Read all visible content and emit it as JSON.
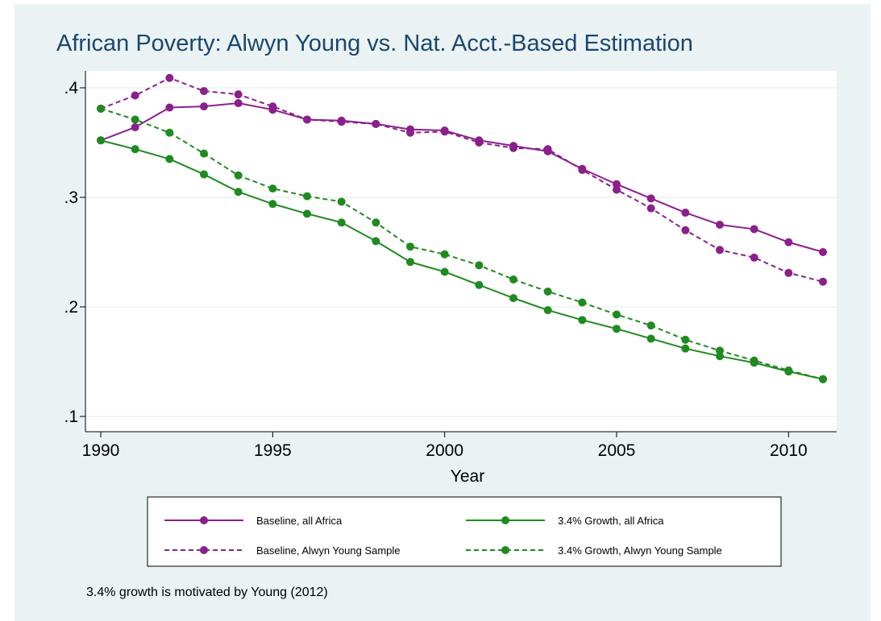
{
  "chart_data": {
    "type": "line",
    "title": "African Poverty: Alwyn Young vs. Nat. Acct.-Based Estimation",
    "xlabel": "Year",
    "ylabel": "",
    "xlim": [
      1990,
      2011
    ],
    "ylim": [
      0.1,
      0.4
    ],
    "x_ticks": [
      1990,
      1995,
      2000,
      2005,
      2010
    ],
    "x_tick_labels": [
      "1990",
      "1995",
      "2000",
      "2005",
      "2010"
    ],
    "y_ticks": [
      0.1,
      0.2,
      0.3,
      0.4
    ],
    "y_tick_labels": [
      ".1",
      ".2",
      ".3",
      ".4"
    ],
    "grid": "horizontal",
    "legend_position": "bottom",
    "x": [
      1990,
      1991,
      1992,
      1993,
      1994,
      1995,
      1996,
      1997,
      1998,
      1999,
      2000,
      2001,
      2002,
      2003,
      2004,
      2005,
      2006,
      2007,
      2008,
      2009,
      2010,
      2011
    ],
    "series": [
      {
        "name": "Baseline, all Africa",
        "color": "#8b1f8b",
        "dash": "solid",
        "values": [
          0.352,
          0.364,
          0.382,
          0.383,
          0.386,
          0.38,
          0.371,
          0.37,
          0.367,
          0.362,
          0.361,
          0.352,
          0.347,
          0.342,
          0.326,
          0.312,
          0.299,
          0.286,
          0.275,
          0.271,
          0.259,
          0.25
        ]
      },
      {
        "name": "3.4% Growth, all Africa",
        "color": "#1f8a1f",
        "dash": "solid",
        "values": [
          0.352,
          0.344,
          0.335,
          0.321,
          0.305,
          0.294,
          0.285,
          0.277,
          0.26,
          0.241,
          0.232,
          0.22,
          0.208,
          0.197,
          0.188,
          0.18,
          0.171,
          0.162,
          0.155,
          0.149,
          0.141,
          0.134
        ]
      },
      {
        "name": "Baseline, Alwyn Young Sample",
        "color": "#8b1f8b",
        "dash": "dashed",
        "values": [
          0.381,
          0.393,
          0.409,
          0.397,
          0.394,
          0.383,
          0.371,
          0.369,
          0.367,
          0.359,
          0.36,
          0.35,
          0.345,
          0.344,
          0.325,
          0.307,
          0.29,
          0.27,
          0.252,
          0.245,
          0.231,
          0.223
        ]
      },
      {
        "name": "3.4% Growth, Alwyn Young Sample",
        "color": "#1f8a1f",
        "dash": "dashed",
        "values": [
          0.381,
          0.371,
          0.359,
          0.34,
          0.32,
          0.308,
          0.301,
          0.296,
          0.277,
          0.255,
          0.248,
          0.238,
          0.225,
          0.214,
          0.204,
          0.193,
          0.183,
          0.17,
          0.16,
          0.151,
          0.142,
          0.134
        ]
      }
    ],
    "note": "3.4% growth is motivated by Young (2012)"
  }
}
